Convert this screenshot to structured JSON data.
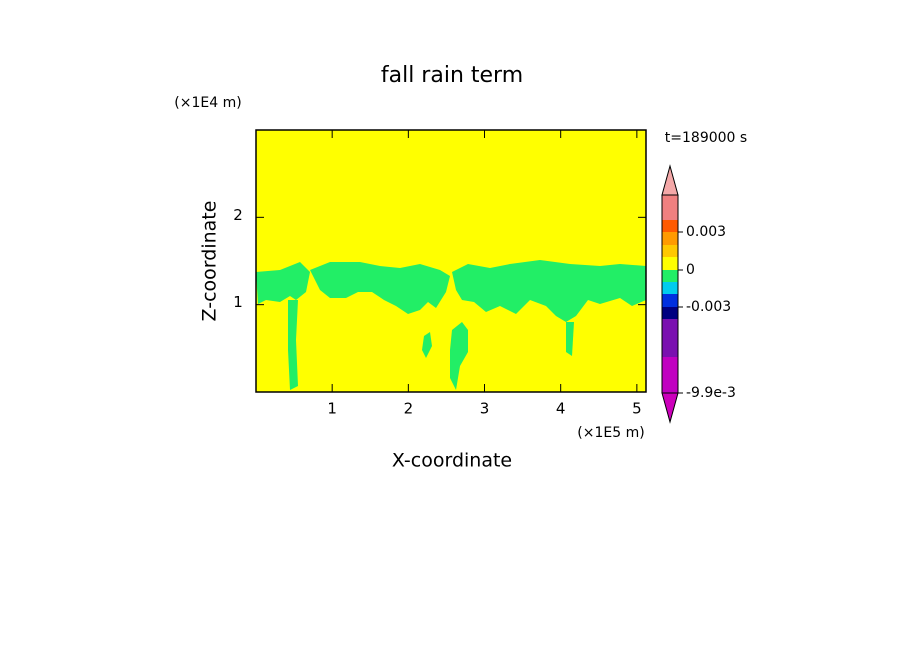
{
  "chart_data": {
    "type": "contour",
    "title": "fall rain term",
    "x_label": "X-coordinate",
    "y_label": "Z-coordinate",
    "x_unit": "(×1E5 m)",
    "y_unit": "(×1E4 m)",
    "time_label": "t=189000 s",
    "xlim": [
      0,
      5.12
    ],
    "xticks": [
      1,
      2,
      3,
      4,
      5
    ],
    "ylim": [
      0,
      3
    ],
    "yticks": [
      1,
      2
    ],
    "background_color": "#ffff00",
    "feature_color": "#22ee66",
    "colorbar": {
      "colors": [
        "#c000c0",
        "#7a10b0",
        "#000080",
        "#0030e0",
        "#00ccee",
        "#22ee66",
        "#ffff00",
        "#ffc800",
        "#ff9a00",
        "#ff5a00",
        "#f08080"
      ],
      "extend_colors": [
        "#cc00bb",
        "#f4a8a8"
      ],
      "ticks": [
        {
          "value": -0.0099,
          "label": "-9.9e-3"
        },
        -0.003,
        0,
        0.003
      ]
    }
  }
}
